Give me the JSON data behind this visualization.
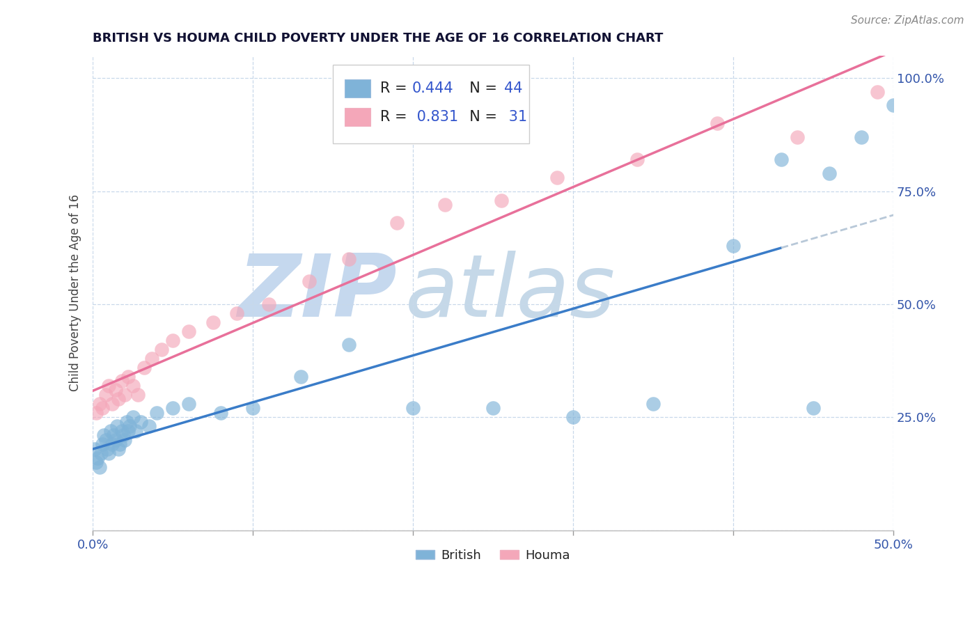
{
  "title": "BRITISH VS HOUMA CHILD POVERTY UNDER THE AGE OF 16 CORRELATION CHART",
  "source_text": "Source: ZipAtlas.com",
  "ylabel": "Child Poverty Under the Age of 16",
  "xlim": [
    0.0,
    0.5
  ],
  "ylim": [
    0.0,
    1.05
  ],
  "xticks": [
    0.0,
    0.1,
    0.2,
    0.3,
    0.4,
    0.5
  ],
  "xticklabels": [
    "0.0%",
    "",
    "",
    "",
    "",
    "50.0%"
  ],
  "yticks": [
    0.0,
    0.25,
    0.5,
    0.75,
    1.0
  ],
  "yticklabels": [
    "",
    "25.0%",
    "50.0%",
    "75.0%",
    "100.0%"
  ],
  "british_R": 0.444,
  "british_N": 44,
  "houma_R": 0.831,
  "houma_N": 31,
  "british_color": "#7fb3d8",
  "houma_color": "#f4a7b9",
  "british_line_color": "#3a7cc8",
  "houma_line_color": "#e8709a",
  "trend_extension_color": "#b8c8d8",
  "watermark_zip_color": "#c5d8ee",
  "watermark_atlas_color": "#c5d8e8",
  "grid_color": "#c8d8ea",
  "british_x": [
    0.001,
    0.002,
    0.003,
    0.004,
    0.005,
    0.006,
    0.007,
    0.008,
    0.009,
    0.01,
    0.011,
    0.012,
    0.013,
    0.014,
    0.015,
    0.016,
    0.017,
    0.018,
    0.019,
    0.02,
    0.021,
    0.022,
    0.023,
    0.025,
    0.027,
    0.03,
    0.035,
    0.04,
    0.05,
    0.06,
    0.08,
    0.1,
    0.13,
    0.16,
    0.2,
    0.25,
    0.3,
    0.35,
    0.4,
    0.43,
    0.45,
    0.46,
    0.48,
    0.5
  ],
  "british_y": [
    0.18,
    0.15,
    0.16,
    0.14,
    0.17,
    0.19,
    0.21,
    0.2,
    0.18,
    0.17,
    0.22,
    0.19,
    0.21,
    0.2,
    0.23,
    0.18,
    0.19,
    0.22,
    0.21,
    0.2,
    0.24,
    0.22,
    0.23,
    0.25,
    0.22,
    0.24,
    0.23,
    0.26,
    0.27,
    0.28,
    0.26,
    0.27,
    0.34,
    0.41,
    0.27,
    0.27,
    0.25,
    0.28,
    0.63,
    0.82,
    0.27,
    0.79,
    0.87,
    0.94
  ],
  "houma_x": [
    0.002,
    0.004,
    0.006,
    0.008,
    0.01,
    0.012,
    0.014,
    0.016,
    0.018,
    0.02,
    0.022,
    0.025,
    0.028,
    0.032,
    0.037,
    0.043,
    0.05,
    0.06,
    0.075,
    0.09,
    0.11,
    0.135,
    0.16,
    0.19,
    0.22,
    0.255,
    0.29,
    0.34,
    0.39,
    0.44,
    0.49
  ],
  "houma_y": [
    0.26,
    0.28,
    0.27,
    0.3,
    0.32,
    0.28,
    0.31,
    0.29,
    0.33,
    0.3,
    0.34,
    0.32,
    0.3,
    0.36,
    0.38,
    0.4,
    0.42,
    0.44,
    0.46,
    0.48,
    0.5,
    0.55,
    0.6,
    0.68,
    0.72,
    0.73,
    0.78,
    0.82,
    0.9,
    0.87,
    0.97
  ]
}
